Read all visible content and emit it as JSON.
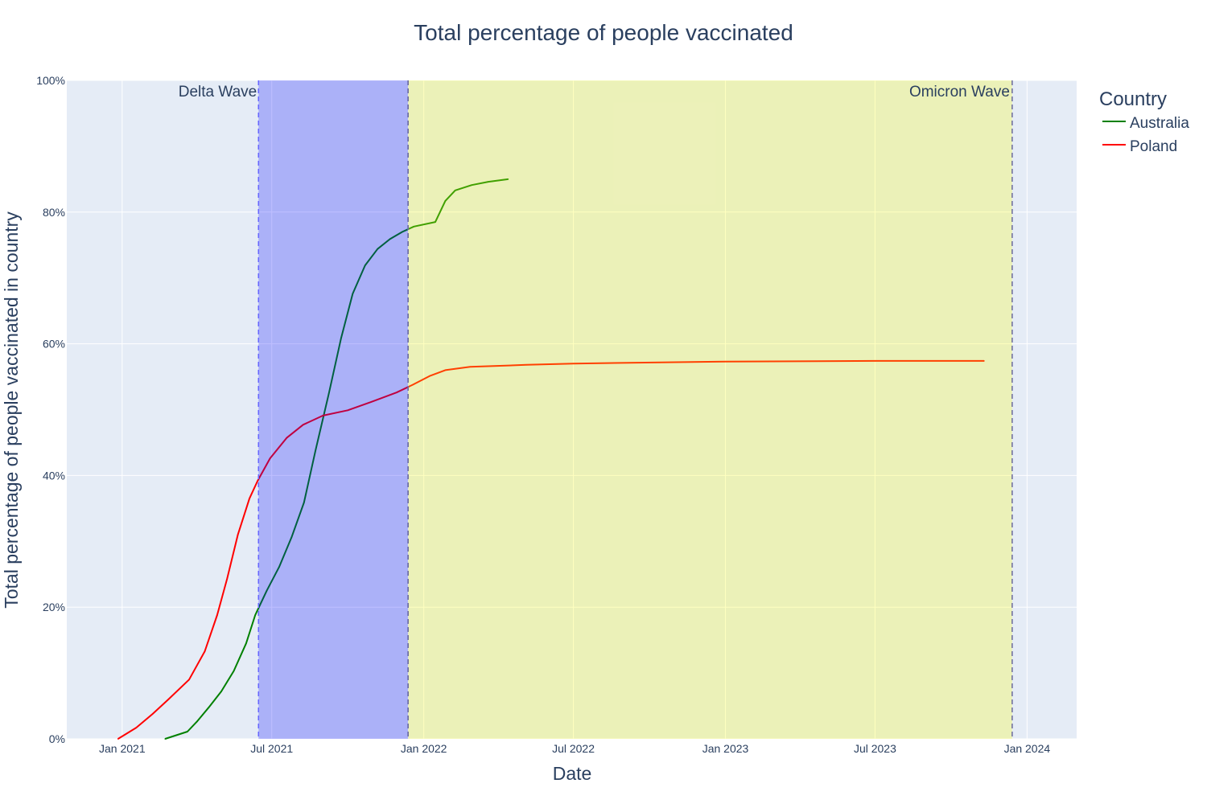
{
  "chart_data": {
    "type": "line",
    "title": "Total percentage of people vaccinated",
    "xlabel": "Date",
    "ylabel": "Total percentage of people vaccinated in country",
    "xlim": [
      "2020-10-26",
      "2024-03-01"
    ],
    "ylim": [
      0,
      100
    ],
    "grid": true,
    "x_ticks": [
      {
        "date": "2021-01-01",
        "label": "Jan 2021"
      },
      {
        "date": "2021-07-01",
        "label": "Jul 2021"
      },
      {
        "date": "2022-01-01",
        "label": "Jan 2022"
      },
      {
        "date": "2022-07-01",
        "label": "Jul 2022"
      },
      {
        "date": "2023-01-01",
        "label": "Jan 2023"
      },
      {
        "date": "2023-07-01",
        "label": "Jul 2023"
      },
      {
        "date": "2024-01-01",
        "label": "Jan 2024"
      }
    ],
    "y_ticks": [
      {
        "value": 0,
        "label": "0%"
      },
      {
        "value": 20,
        "label": "20%"
      },
      {
        "value": 40,
        "label": "40%"
      },
      {
        "value": 60,
        "label": "60%"
      },
      {
        "value": 80,
        "label": "80%"
      },
      {
        "value": 100,
        "label": "100%"
      }
    ],
    "legend": {
      "title": "Country",
      "placement": "right"
    },
    "series": [
      {
        "name": "Australia",
        "color": "#008000",
        "points": [
          [
            "2021-02-22",
            0
          ],
          [
            "2021-03-21",
            1.1
          ],
          [
            "2021-04-02",
            2.7
          ],
          [
            "2021-04-16",
            4.8
          ],
          [
            "2021-05-01",
            7.2
          ],
          [
            "2021-05-16",
            10.3
          ],
          [
            "2021-05-31",
            14.5
          ],
          [
            "2021-06-11",
            18.8
          ],
          [
            "2021-06-25",
            22.5
          ],
          [
            "2021-07-10",
            26.1
          ],
          [
            "2021-07-25",
            30.6
          ],
          [
            "2021-08-09",
            35.9
          ],
          [
            "2021-08-23",
            43.8
          ],
          [
            "2021-09-08",
            52.4
          ],
          [
            "2021-09-23",
            60.9
          ],
          [
            "2021-10-07",
            67.6
          ],
          [
            "2021-10-22",
            71.9
          ],
          [
            "2021-11-06",
            74.4
          ],
          [
            "2021-11-21",
            75.9
          ],
          [
            "2021-12-06",
            77.0
          ],
          [
            "2021-12-20",
            77.8
          ],
          [
            "2022-01-15",
            78.5
          ],
          [
            "2022-01-27",
            81.7
          ],
          [
            "2022-02-08",
            83.3
          ],
          [
            "2022-02-28",
            84.1
          ],
          [
            "2022-03-20",
            84.6
          ],
          [
            "2022-04-13",
            85.0
          ]
        ]
      },
      {
        "name": "Poland",
        "color": "#ff0000",
        "points": [
          [
            "2020-12-27",
            0
          ],
          [
            "2021-01-18",
            1.7
          ],
          [
            "2021-02-07",
            3.8
          ],
          [
            "2021-02-26",
            6.0
          ],
          [
            "2021-03-23",
            9.0
          ],
          [
            "2021-04-11",
            13.3
          ],
          [
            "2021-04-26",
            18.8
          ],
          [
            "2021-05-08",
            24.3
          ],
          [
            "2021-05-21",
            31.0
          ],
          [
            "2021-06-04",
            36.5
          ],
          [
            "2021-06-14",
            39.2
          ],
          [
            "2021-06-29",
            42.6
          ],
          [
            "2021-07-19",
            45.7
          ],
          [
            "2021-08-08",
            47.7
          ],
          [
            "2021-09-01",
            49.1
          ],
          [
            "2021-10-01",
            49.9
          ],
          [
            "2021-10-30",
            51.2
          ],
          [
            "2021-11-29",
            52.6
          ],
          [
            "2021-12-19",
            53.8
          ],
          [
            "2022-01-08",
            55.1
          ],
          [
            "2022-01-27",
            56.0
          ],
          [
            "2022-02-26",
            56.5
          ],
          [
            "2022-05-05",
            56.8
          ],
          [
            "2022-07-01",
            57.0
          ],
          [
            "2023-01-01",
            57.3
          ],
          [
            "2023-07-01",
            57.4
          ],
          [
            "2023-11-10",
            57.4
          ]
        ]
      }
    ],
    "annotations": [
      {
        "label": "Delta Wave",
        "start": "2021-06-15",
        "end": "2021-12-13",
        "fill": "#0000ff",
        "opacity": 0.25,
        "line": "#6666ff"
      },
      {
        "label": "Omicron Wave",
        "start": "2021-12-13",
        "end": "2023-12-14",
        "fill": "#ffff00",
        "opacity": 0.25,
        "line": "#6b6b9b"
      }
    ]
  }
}
